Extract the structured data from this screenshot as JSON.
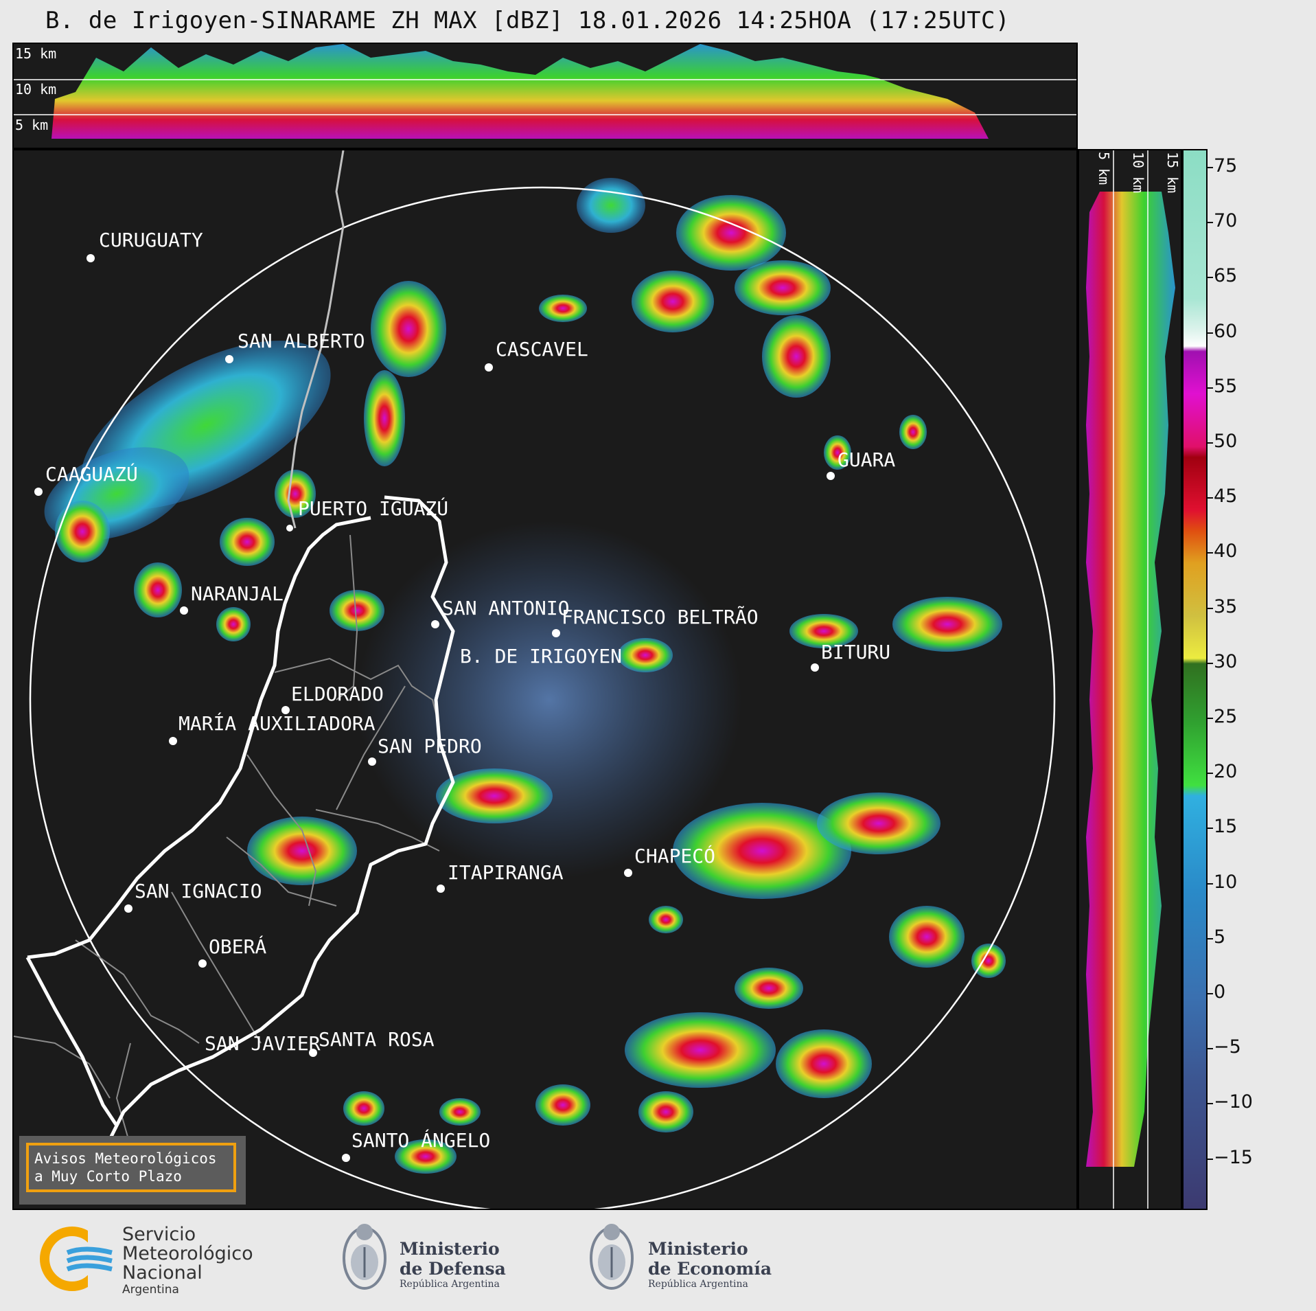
{
  "title": "B. de Irigoyen-SINARAME ZH MAX [dBZ] 18.01.2026 14:25HOA (17:25UTC)",
  "altitude_labels": [
    "15 km",
    "10 km",
    "5 km"
  ],
  "side_altitude_labels": [
    "5 km",
    "10 km",
    "15 km"
  ],
  "colorbar": {
    "unit": "dBZ",
    "ticks": [
      "75",
      "70",
      "65",
      "60",
      "55",
      "50",
      "45",
      "40",
      "35",
      "30",
      "25",
      "20",
      "15",
      "10",
      "5",
      "0",
      "−5",
      "−10",
      "−15"
    ]
  },
  "cities": [
    {
      "name": "CURUGUATY"
    },
    {
      "name": "SAN ALBERTO"
    },
    {
      "name": "CASCAVEL"
    },
    {
      "name": "CAAGUAZÚ"
    },
    {
      "name": "PUERTO IGUAZÚ"
    },
    {
      "name": "GUARA"
    },
    {
      "name": "NARANJAL"
    },
    {
      "name": "SAN ANTONIO"
    },
    {
      "name": "FRANCISCO BELTRÃO"
    },
    {
      "name": "B. DE IRIGOYEN"
    },
    {
      "name": "BITURU"
    },
    {
      "name": "ELDORADO"
    },
    {
      "name": "MARÍA AUXILIADORA"
    },
    {
      "name": "SAN PEDRO"
    },
    {
      "name": "CHAPECÓ"
    },
    {
      "name": "ITAPIRANGA"
    },
    {
      "name": "SAN IGNACIO"
    },
    {
      "name": "OBERÁ"
    },
    {
      "name": "SAN JAVIER"
    },
    {
      "name": "SANTA ROSA"
    },
    {
      "name": "SANTO ÁNGELO"
    }
  ],
  "warning": {
    "line1": "Avisos Meteorológicos",
    "line2": "a Muy Corto Plazo"
  },
  "logos": {
    "smn": {
      "line1": "Servicio",
      "line2": "Meteorológico",
      "line3": "Nacional",
      "line4": "Argentina"
    },
    "defensa": {
      "line1": "Ministerio",
      "line2": "de Defensa",
      "line3": "República Argentina"
    },
    "economia": {
      "line1": "Ministerio",
      "line2": "de Economía",
      "line3": "República Argentina"
    }
  }
}
